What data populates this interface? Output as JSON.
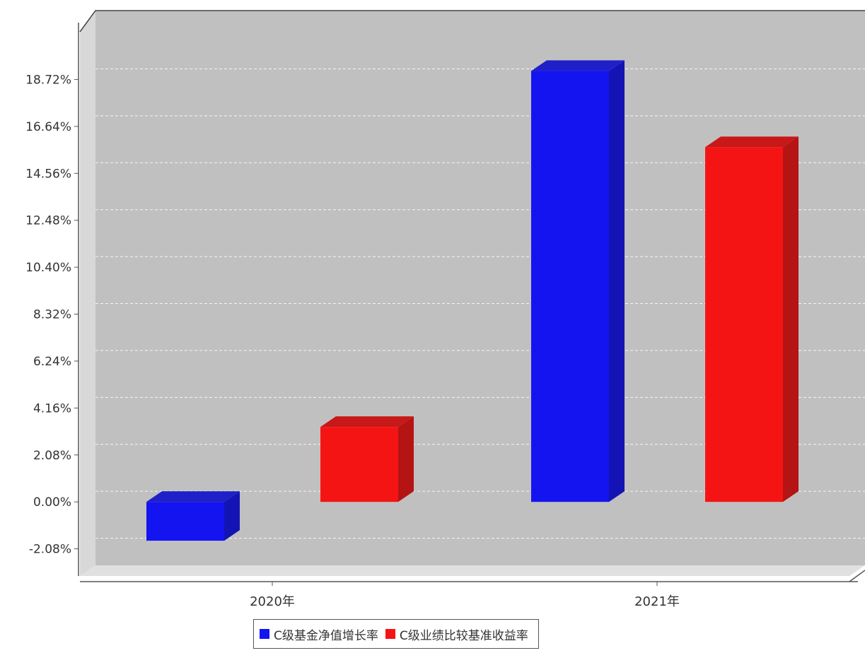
{
  "chart_data": {
    "type": "bar",
    "categories": [
      "2020年",
      "2021年"
    ],
    "series": [
      {
        "name": "C级基金净值增长率",
        "values": [
          -1.72,
          19.1
        ],
        "color": "#1414f0",
        "side_color": "#1414b4",
        "top_color": "#2020c8"
      },
      {
        "name": "C级业绩比较基准收益率",
        "values": [
          3.32,
          15.72
        ],
        "color": "#f51414",
        "side_color": "#b41414",
        "top_color": "#c81818"
      }
    ],
    "y_ticks": [
      "-2.08%",
      "0.00%",
      "2.08%",
      "4.16%",
      "6.24%",
      "8.32%",
      "10.40%",
      "12.48%",
      "14.56%",
      "16.64%",
      "18.72%"
    ],
    "ylim": [
      -2.5,
      20.3
    ],
    "grid": true,
    "legend_position": "bottom-center",
    "plot_background": "#c0c0c0"
  }
}
